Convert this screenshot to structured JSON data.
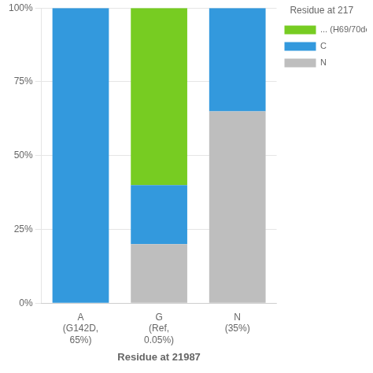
{
  "chart_data": {
    "type": "bar",
    "categories": [
      "A\n(G142D,\n65%)",
      "G\n(Ref,\n0.05%)",
      "N\n(35%)"
    ],
    "series": [
      {
        "name": "N",
        "color": "#BEBEBE",
        "values": [
          0.0,
          0.2,
          0.65
        ]
      },
      {
        "name": "C",
        "color": "#3399DD",
        "values": [
          1.0,
          0.2,
          0.35
        ]
      },
      {
        "name": "... (H69/70de",
        "color": "#77CC22",
        "values": [
          0.0,
          0.6,
          0.0
        ]
      }
    ],
    "x_label": "Residue at 21987",
    "legend_title": "Residue at 217",
    "stacked": true,
    "ylim": [
      0,
      1.0
    ],
    "yticks": [
      {
        "value": 0,
        "label": "0%"
      },
      {
        "value": 0.25,
        "label": "25%"
      },
      {
        "value": 0.5,
        "label": "50%"
      },
      {
        "value": 0.75,
        "label": "75%"
      },
      {
        "value": 1.0,
        "label": "100%"
      }
    ],
    "grid": "y",
    "legend": "right"
  }
}
